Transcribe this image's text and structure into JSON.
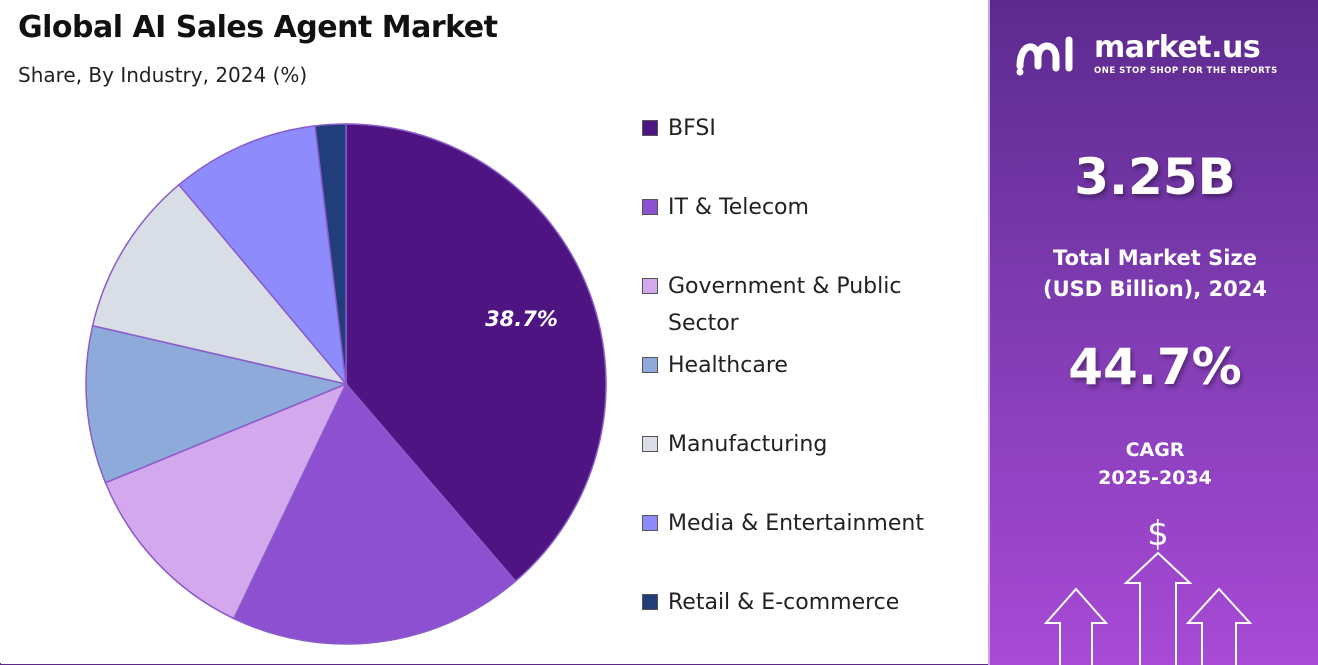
{
  "title": "Global AI Sales Agent Market",
  "subtitle": "Share, By Industry, 2024 (%)",
  "chart_data": {
    "type": "pie",
    "title": "Global AI Sales Agent Market",
    "subtitle": "Share, By Industry, 2024 (%)",
    "categories": [
      "BFSI",
      "IT & Telecom",
      "Government & Public Sector",
      "Healthcare",
      "Manufacturing",
      "Media & Entertainment",
      "Retail & E-commerce"
    ],
    "values": [
      38.7,
      18.4,
      11.7,
      9.8,
      10.3,
      9.2,
      1.9
    ],
    "colors": [
      "#4e1582",
      "#8c50d1",
      "#d3a8ec",
      "#8eaadb",
      "#d9dde6",
      "#8e8cfd",
      "#223e7a"
    ],
    "data_labels": [
      "38.7%",
      "",
      "",
      "",
      "",
      "",
      ""
    ],
    "legend_position": "right"
  },
  "legend": [
    {
      "label": "BFSI",
      "color": "#4e1582"
    },
    {
      "label": "IT & Telecom",
      "color": "#8c50d1"
    },
    {
      "label": "Government & Public Sector",
      "color": "#d3a8ec"
    },
    {
      "label": "Healthcare",
      "color": "#8eaadb"
    },
    {
      "label": "Manufacturing",
      "color": "#d9dde6"
    },
    {
      "label": "Media & Entertainment",
      "color": "#8e8cfd"
    },
    {
      "label": "Retail & E-commerce",
      "color": "#223e7a"
    }
  ],
  "brand": {
    "name": "market.us",
    "tagline": "ONE STOP SHOP FOR THE REPORTS",
    "logo_icon": "market-us-logo-icon"
  },
  "stats": {
    "market_size_value": "3.25B",
    "market_size_caption_line1": "Total Market Size",
    "market_size_caption_line2": "(USD Billion), 2024",
    "cagr_value": "44.7%",
    "cagr_caption_line1": "CAGR",
    "cagr_caption_line2": "2025-2034",
    "currency_symbol": "$"
  },
  "accent_colors": {
    "panel_top": "#5c2a8e",
    "panel_bottom": "#a84ad6"
  }
}
